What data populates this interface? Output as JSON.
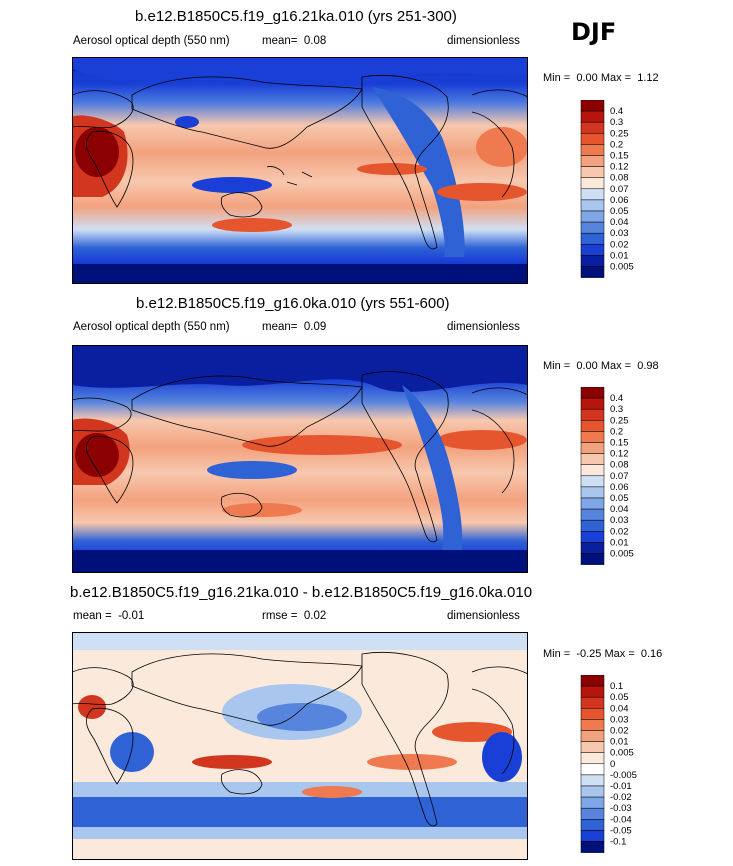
{
  "season": "DJF",
  "colors": {
    "ocean_low": "#1a3fd6",
    "polar": "#0a1fa0",
    "mid_high": "#f3a27f",
    "high": "#d2361f",
    "land_line": "#000000"
  },
  "chart_data": [
    {
      "type": "heatmap",
      "title": "b.e12.B1850C5.f19_g16.21ka.010 (yrs 251-300)",
      "variable": "Aerosol optical depth (550 nm)",
      "mean_label": "mean=",
      "mean_value": "0.08",
      "units": "dimensionless",
      "min_label": "Min =",
      "min_value": "0.00",
      "max_label": "Max =",
      "max_value": "1.12",
      "colorbar": {
        "levels": [
          "0.4",
          "0.3",
          "0.25",
          "0.2",
          "0.15",
          "0.12",
          "0.08",
          "0.07",
          "0.06",
          "0.05",
          "0.04",
          "0.03",
          "0.02",
          "0.01",
          "0.005"
        ],
        "colors": [
          "#8b0000",
          "#b5150d",
          "#d2361f",
          "#e5562f",
          "#f07a50",
          "#f3a27f",
          "#f7c8ae",
          "#fbe9dc",
          "#cfe0f5",
          "#a9c6ee",
          "#7fa6e6",
          "#5785dd",
          "#2f62d5",
          "#1a3fd6",
          "#0a1fa0",
          "#00107a"
        ]
      }
    },
    {
      "type": "heatmap",
      "title": "b.e12.B1850C5.f19_g16.0ka.010 (yrs 551-600)",
      "variable": "Aerosol optical depth (550 nm)",
      "mean_label": "mean=",
      "mean_value": "0.09",
      "units": "dimensionless",
      "min_label": "Min =",
      "min_value": "0.00",
      "max_label": "Max =",
      "max_value": "0.98",
      "colorbar": {
        "levels": [
          "0.4",
          "0.3",
          "0.25",
          "0.2",
          "0.15",
          "0.12",
          "0.08",
          "0.07",
          "0.06",
          "0.05",
          "0.04",
          "0.03",
          "0.02",
          "0.01",
          "0.005"
        ],
        "colors": [
          "#8b0000",
          "#b5150d",
          "#d2361f",
          "#e5562f",
          "#f07a50",
          "#f3a27f",
          "#f7c8ae",
          "#fbe9dc",
          "#cfe0f5",
          "#a9c6ee",
          "#7fa6e6",
          "#5785dd",
          "#2f62d5",
          "#1a3fd6",
          "#0a1fa0",
          "#00107a"
        ]
      }
    },
    {
      "type": "heatmap",
      "title": "b.e12.B1850C5.f19_g16.21ka.010 - b.e12.B1850C5.f19_g16.0ka.010",
      "variable": "",
      "mean_label": "mean =",
      "mean_value": "-0.01",
      "rmse_label": "rmse =",
      "rmse_value": "0.02",
      "units": "dimensionless",
      "min_label": "Min =",
      "min_value": "-0.25",
      "max_label": "Max =",
      "max_value": "0.16",
      "colorbar": {
        "levels": [
          "0.1",
          "0.05",
          "0.04",
          "0.03",
          "0.02",
          "0.01",
          "0.005",
          "0",
          "-0.005",
          "-0.01",
          "-0.02",
          "-0.03",
          "-0.04",
          "-0.05",
          "-0.1"
        ],
        "colors": [
          "#8b0000",
          "#b5150d",
          "#d2361f",
          "#e5562f",
          "#f07a50",
          "#f3a27f",
          "#f7c8ae",
          "#fbe9dc",
          "#ffffff",
          "#cfe0f5",
          "#a9c6ee",
          "#7fa6e6",
          "#5785dd",
          "#2f62d5",
          "#1a3fd6",
          "#00107a"
        ]
      }
    }
  ]
}
